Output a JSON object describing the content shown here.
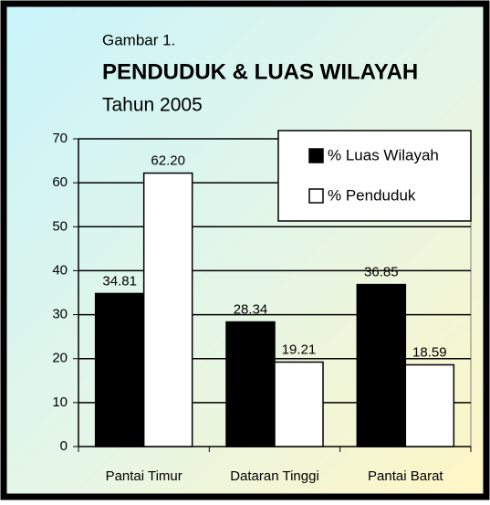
{
  "chart_data": {
    "type": "bar",
    "caption": "Gambar 1.",
    "title": "PENDUDUK & LUAS WILAYAH",
    "subtitle": "Tahun 2005",
    "categories": [
      "Pantai Timur",
      "Dataran Tinggi",
      "Pantai Barat"
    ],
    "series": [
      {
        "name": "% Luas Wilayah",
        "color": "#000000",
        "values": [
          34.81,
          28.34,
          36.85
        ],
        "value_labels": [
          "34.81",
          "28.34",
          "36.85"
        ]
      },
      {
        "name": "% Penduduk",
        "color": "#ffffff",
        "values": [
          62.2,
          19.21,
          18.59
        ],
        "value_labels": [
          "62.20",
          "19.21",
          "18.59"
        ]
      }
    ],
    "ylim": [
      0,
      70
    ],
    "yticks": [
      0,
      10,
      20,
      30,
      40,
      50,
      60,
      70
    ],
    "grid": true,
    "legend": "top-right"
  }
}
